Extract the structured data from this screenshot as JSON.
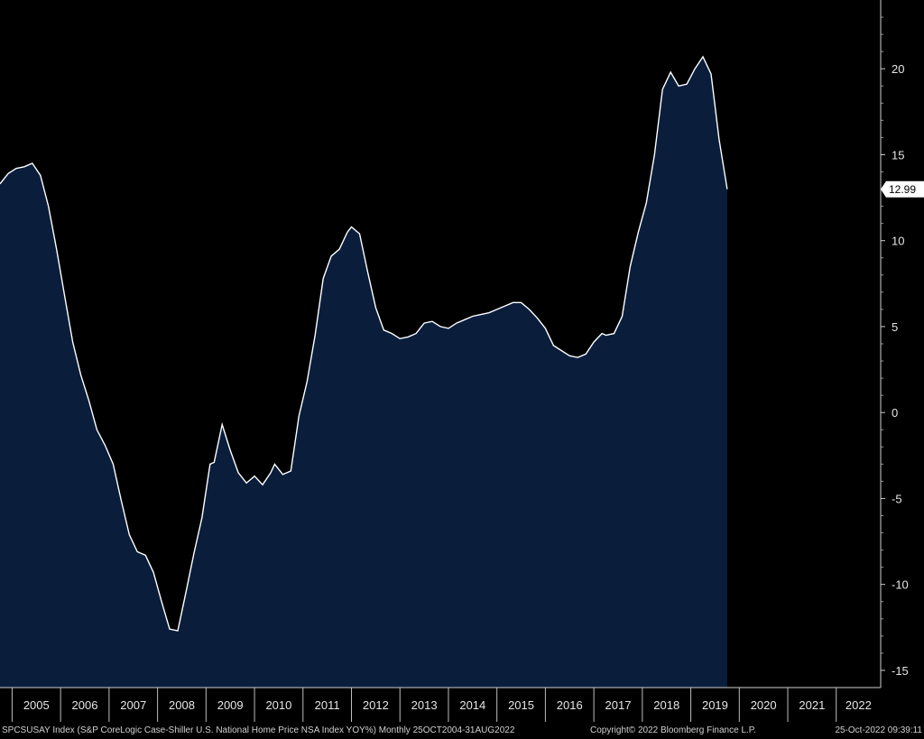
{
  "chart_data": {
    "type": "area",
    "title": "",
    "xlabel": "",
    "ylabel": "",
    "x_ticks": [
      "2005",
      "2006",
      "2007",
      "2008",
      "2009",
      "2010",
      "2011",
      "2012",
      "2013",
      "2014",
      "2015",
      "2016",
      "2017",
      "2018",
      "2019",
      "2020",
      "2021",
      "2022"
    ],
    "y_ticks": [
      20,
      15,
      10,
      5,
      0,
      -5,
      -10,
      -15
    ],
    "ylim": [
      -16,
      24
    ],
    "xlim": [
      "2004-10",
      "2022-12"
    ],
    "grid": false,
    "fill_color": "#0a1e3c",
    "line_color": "#ffffff",
    "last_value_label": "12.99",
    "series": [
      {
        "values": [
          [
            "2004-10",
            13.3
          ],
          [
            "2004-12",
            13.9
          ],
          [
            "2005-02",
            14.2
          ],
          [
            "2005-04",
            14.3
          ],
          [
            "2005-06",
            14.5
          ],
          [
            "2005-08",
            13.8
          ],
          [
            "2005-10",
            12.0
          ],
          [
            "2005-12",
            9.5
          ],
          [
            "2006-02",
            6.8
          ],
          [
            "2006-04",
            4.1
          ],
          [
            "2006-06",
            2.2
          ],
          [
            "2006-08",
            0.7
          ],
          [
            "2006-10",
            -1.0
          ],
          [
            "2006-12",
            -1.9
          ],
          [
            "2007-02",
            -3.0
          ],
          [
            "2007-04",
            -5.1
          ],
          [
            "2007-06",
            -7.1
          ],
          [
            "2007-08",
            -8.1
          ],
          [
            "2007-10",
            -8.3
          ],
          [
            "2007-12",
            -9.3
          ],
          [
            "2008-02",
            -11.0
          ],
          [
            "2008-04",
            -12.6
          ],
          [
            "2008-06",
            -12.7
          ],
          [
            "2008-08",
            -10.5
          ],
          [
            "2008-10",
            -8.2
          ],
          [
            "2008-12",
            -6.1
          ],
          [
            "2009-02",
            -3.0
          ],
          [
            "2009-03",
            -2.9
          ],
          [
            "2009-05",
            -0.7
          ],
          [
            "2009-07",
            -2.2
          ],
          [
            "2009-09",
            -3.5
          ],
          [
            "2009-11",
            -4.1
          ],
          [
            "2010-01",
            -3.7
          ],
          [
            "2010-03",
            -4.2
          ],
          [
            "2010-05",
            -3.5
          ],
          [
            "2010-06",
            -3.0
          ],
          [
            "2010-08",
            -3.6
          ],
          [
            "2010-10",
            -3.4
          ],
          [
            "2010-12",
            -0.2
          ],
          [
            "2011-02",
            1.8
          ],
          [
            "2011-04",
            4.5
          ],
          [
            "2011-06",
            7.8
          ],
          [
            "2011-08",
            9.1
          ],
          [
            "2011-10",
            9.5
          ],
          [
            "2011-12",
            10.5
          ],
          [
            "2012-01",
            10.8
          ],
          [
            "2012-03",
            10.4
          ],
          [
            "2012-05",
            8.2
          ],
          [
            "2012-07",
            6.1
          ],
          [
            "2012-09",
            4.8
          ],
          [
            "2012-11",
            4.6
          ],
          [
            "2013-01",
            4.3
          ],
          [
            "2013-03",
            4.4
          ],
          [
            "2013-05",
            4.6
          ],
          [
            "2013-07",
            5.2
          ],
          [
            "2013-09",
            5.3
          ],
          [
            "2013-11",
            5.0
          ],
          [
            "2014-01",
            4.9
          ],
          [
            "2014-03",
            5.2
          ],
          [
            "2014-05",
            5.4
          ],
          [
            "2014-07",
            5.6
          ],
          [
            "2014-09",
            5.7
          ],
          [
            "2014-11",
            5.8
          ],
          [
            "2015-01",
            6.0
          ],
          [
            "2015-03",
            6.2
          ],
          [
            "2015-05",
            6.4
          ],
          [
            "2015-07",
            6.4
          ],
          [
            "2015-09",
            6.0
          ],
          [
            "2015-11",
            5.5
          ],
          [
            "2016-01",
            4.9
          ],
          [
            "2016-03",
            3.9
          ],
          [
            "2016-05",
            3.6
          ],
          [
            "2016-07",
            3.3
          ],
          [
            "2016-09",
            3.2
          ],
          [
            "2016-11",
            3.4
          ],
          [
            "2017-01",
            4.1
          ],
          [
            "2017-03",
            4.6
          ],
          [
            "2017-04",
            4.5
          ],
          [
            "2017-06",
            4.6
          ],
          [
            "2017-08",
            5.6
          ],
          [
            "2017-10",
            8.5
          ],
          [
            "2017-12",
            10.5
          ],
          [
            "2018-02",
            12.2
          ],
          [
            "2018-04",
            15.0
          ],
          [
            "2018-06",
            18.8
          ],
          [
            "2018-08",
            19.8
          ],
          [
            "2018-10",
            19.0
          ],
          [
            "2018-12",
            19.1
          ],
          [
            "2019-02",
            20.0
          ],
          [
            "2019-04",
            20.7
          ],
          [
            "2019-06",
            19.7
          ],
          [
            "2019-08",
            15.9
          ],
          [
            "2019-10",
            12.99
          ]
        ]
      }
    ]
  },
  "footer": {
    "left": "SPCSUSAY Index (S&P CoreLogic Case-Shiller U.S. National Home Price NSA Index YOY%)  Monthly 25OCT2004-31AUG2022",
    "copyright": "Copyright© 2022 Bloomberg Finance L.P.",
    "timestamp": "25-Oct-2022 09:39:11"
  }
}
